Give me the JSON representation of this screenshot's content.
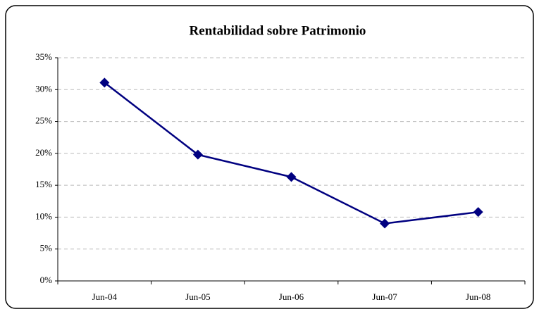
{
  "chart_data": {
    "type": "line",
    "title": "Rentabilidad sobre Patrimonio",
    "categories": [
      "Jun-04",
      "Jun-05",
      "Jun-06",
      "Jun-07",
      "Jun-08"
    ],
    "values": [
      31.1,
      19.8,
      16.3,
      9.0,
      10.8
    ],
    "color": "#000080",
    "ylim": [
      0,
      35
    ],
    "yticks": [
      {
        "value": 0,
        "label": "0%"
      },
      {
        "value": 5,
        "label": "5%"
      },
      {
        "value": 10,
        "label": "10%"
      },
      {
        "value": 15,
        "label": "15%"
      },
      {
        "value": 20,
        "label": "20%"
      },
      {
        "value": 25,
        "label": "25%"
      },
      {
        "value": 30,
        "label": "30%"
      },
      {
        "value": 35,
        "label": "35%"
      }
    ],
    "grid": true
  }
}
